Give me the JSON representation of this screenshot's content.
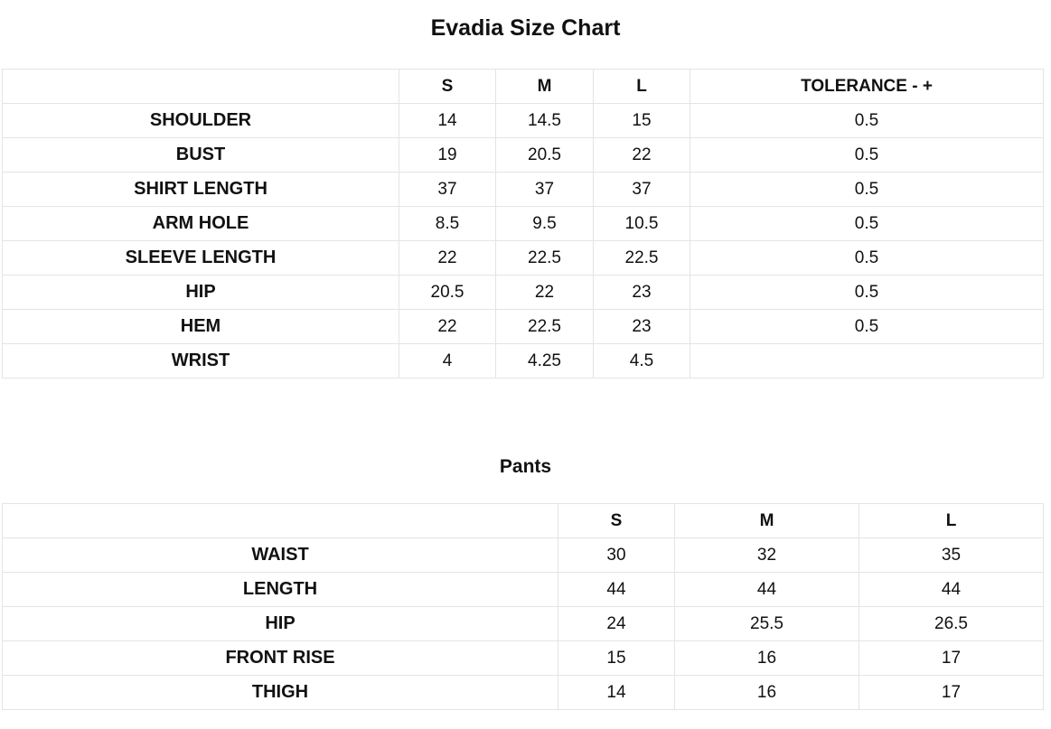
{
  "title": "Evadia Size Chart",
  "tables": [
    {
      "header": [
        "S",
        "M",
        "L",
        "TOLERANCE - +"
      ],
      "rows": [
        [
          "SHOULDER",
          "14",
          "14.5",
          "15",
          "0.5"
        ],
        [
          "BUST",
          "19",
          "20.5",
          "22",
          "0.5"
        ],
        [
          "SHIRT LENGTH",
          "37",
          "37",
          "37",
          "0.5"
        ],
        [
          "ARM HOLE",
          "8.5",
          "9.5",
          "10.5",
          "0.5"
        ],
        [
          "SLEEVE LENGTH",
          "22",
          "22.5",
          "22.5",
          "0.5"
        ],
        [
          "HIP",
          "20.5",
          "22",
          "23",
          "0.5"
        ],
        [
          "HEM",
          "22",
          "22.5",
          "23",
          "0.5"
        ],
        [
          "WRIST",
          "4",
          "4.25",
          "4.5",
          null
        ]
      ]
    },
    {
      "title": "Pants",
      "header": [
        "S",
        "M",
        "L"
      ],
      "rows": [
        [
          "WAIST",
          "30",
          "32",
          "35"
        ],
        [
          "LENGTH",
          "44",
          "44",
          "44"
        ],
        [
          "HIP",
          "24",
          "25.5",
          "26.5"
        ],
        [
          "FRONT RISE",
          "15",
          "16",
          "17"
        ],
        [
          "THIGH",
          "14",
          "16",
          "17"
        ]
      ]
    }
  ]
}
